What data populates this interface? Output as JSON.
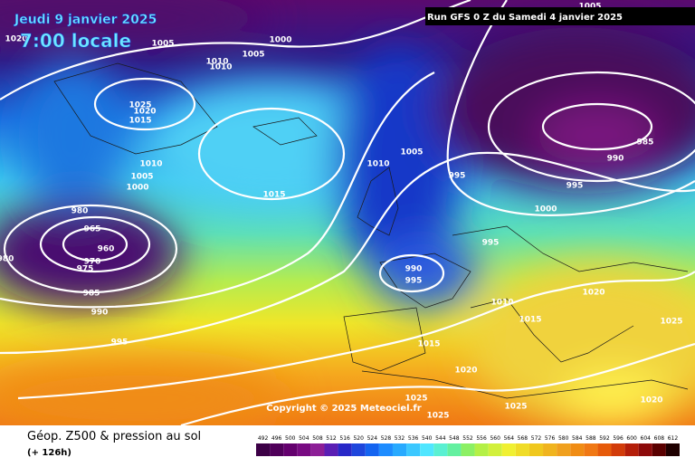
{
  "header": {
    "date": "Jeudi 9 janvier 2025",
    "time": "7:00 locale",
    "run": "Run GFS 0 Z du Samedi 4 janvier 2025"
  },
  "footer": {
    "title": "Géop. Z500 & pression au sol",
    "lead": "(+ 126h)",
    "copyright": "Copyright © 2025 Meteociel.fr"
  },
  "scale": {
    "labels": [
      492,
      496,
      500,
      504,
      508,
      512,
      516,
      520,
      524,
      528,
      532,
      536,
      540,
      544,
      548,
      552,
      556,
      560,
      564,
      568,
      572,
      576,
      580,
      584,
      588,
      592,
      596,
      600,
      604,
      608,
      612
    ],
    "colors": [
      "#3c0046",
      "#50005a",
      "#64006e",
      "#780a82",
      "#8c1e96",
      "#5a1eb4",
      "#2828c8",
      "#1e46dc",
      "#1464f0",
      "#1e8cff",
      "#28aaff",
      "#3cc8ff",
      "#50e6ff",
      "#5af0d2",
      "#64f0a0",
      "#8cf064",
      "#b4f046",
      "#d2f03c",
      "#f0f032",
      "#f0dc28",
      "#f0c81e",
      "#f0b41e",
      "#f0a01e",
      "#f08c14",
      "#f07814",
      "#e65a0a",
      "#d23c0a",
      "#b41e0a",
      "#8c0a0a",
      "#5a0000",
      "#1e0000"
    ]
  },
  "isobars": {
    "labels": [
      "1020",
      "1005",
      "1000",
      "1005",
      "1010",
      "1010",
      "1025",
      "1020",
      "1015",
      "1010",
      "1005",
      "1000",
      "980",
      "965",
      "960",
      "970",
      "975",
      "985",
      "990",
      "995",
      "980",
      "1015",
      "1010",
      "1005",
      "995",
      "1000",
      "995",
      "990",
      "985",
      "1005",
      "995",
      "990",
      "995",
      "1010",
      "1015",
      "1020",
      "1025",
      "1015",
      "1020",
      "1025",
      "1025",
      "1025",
      "1020"
    ]
  }
}
